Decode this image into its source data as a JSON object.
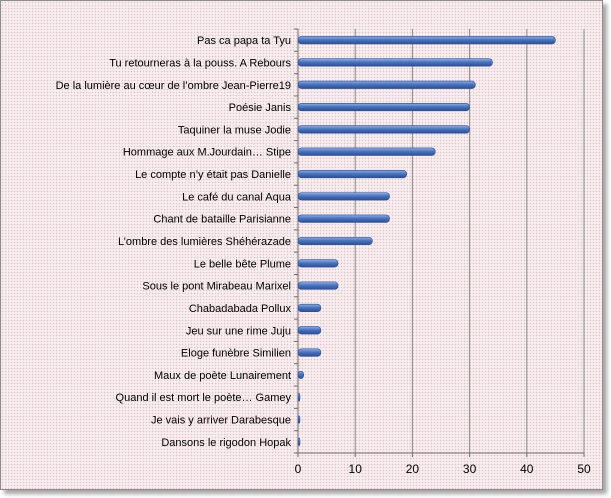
{
  "chart_data": {
    "type": "bar",
    "orientation": "horizontal",
    "categories": [
      "Pas ca papa ta  Tyu",
      "Tu retourneras à la pouss. A Rebours",
      "De la lumière au cœur de l’ombre  Jean-Pierre19",
      "Poésie  Janis",
      "Taquiner la muse  Jodie",
      "Hommage aux M.Jourdain… Stipe",
      "Le compte n’y était pas  Danielle",
      "Le café du canal  Aqua",
      "Chant de bataille  Parisianne",
      "L’ombre des lumières  Shéhérazade",
      "Le belle bête  Plume",
      "Sous le pont Mirabeau  Marixel",
      "Chabadabada  Pollux",
      "Jeu sur une rime  Juju",
      "Eloge funèbre  Similien",
      "Maux de poète  Lunairement",
      "Quand il est mort le poète… Gamey",
      "Je vais y arriver  Darabesque",
      "Dansons le rigodon  Hopak"
    ],
    "values": [
      45,
      34,
      31,
      30,
      30,
      24,
      19,
      16,
      16,
      13,
      7,
      7,
      4,
      4,
      4,
      1,
      0,
      0,
      0
    ],
    "xlim": [
      0,
      50
    ],
    "xticks": [
      "0",
      "10",
      "20",
      "30",
      "40",
      "50"
    ],
    "grid": true,
    "legend": "none",
    "bar_color": "#4a74c0",
    "bar_color_light": "#8fb0e8",
    "bar_color_dark": "#2a4f94",
    "grid_color": "#8a8a8a",
    "axis_color": "#6e6e6e"
  }
}
